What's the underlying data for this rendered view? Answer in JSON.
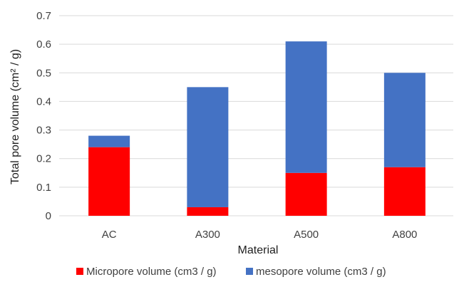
{
  "chart_data": {
    "type": "bar",
    "stacked": true,
    "categories": [
      "AC",
      "A300",
      "A500",
      "A800"
    ],
    "series": [
      {
        "name": "Micropore volume (cm3 / g)",
        "values": [
          0.24,
          0.03,
          0.15,
          0.17
        ],
        "color": "#ff0000"
      },
      {
        "name": "mesopore volume (cm3 / g)",
        "values": [
          0.04,
          0.42,
          0.46,
          0.33
        ],
        "color": "#4472c4"
      }
    ],
    "xlabel": "Material",
    "ylabel": "Total pore volume  (cm² / g)",
    "ylim": [
      0,
      0.7
    ],
    "yticks": [
      "0",
      "0.1",
      "0.2",
      "0.3",
      "0.4",
      "0.5",
      "0.6",
      "0.7"
    ],
    "grid": true,
    "legend": "bottom",
    "gridline_color": "#d9d9d9"
  }
}
